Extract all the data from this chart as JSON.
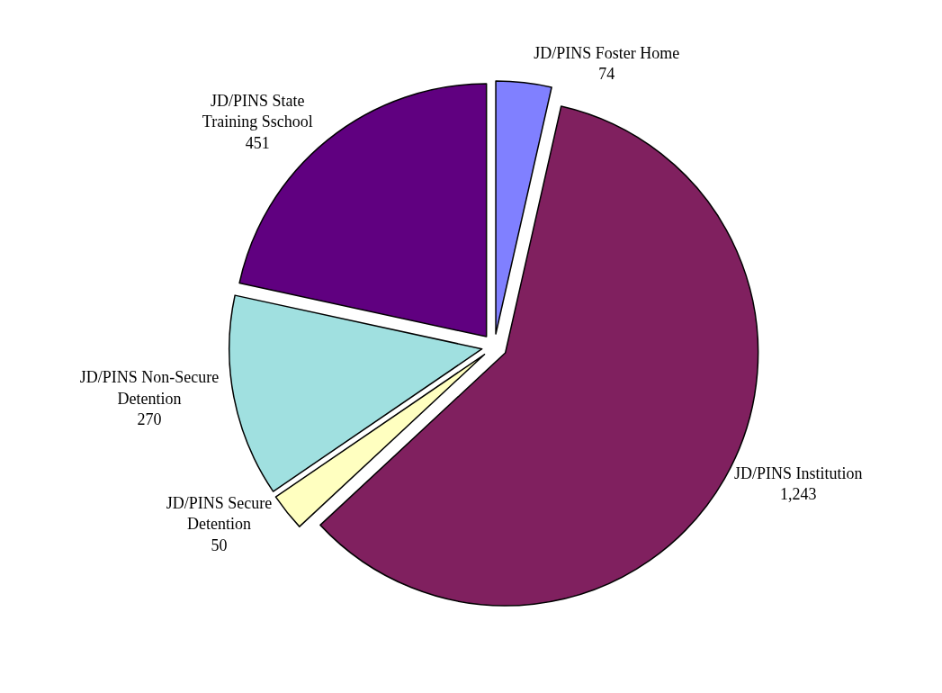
{
  "chart_data": {
    "type": "pie",
    "categories": [
      "JD/PINS Foster Home",
      "JD/PINS Institution",
      "JD/PINS Secure Detention",
      "JD/PINS Non-Secure Detention",
      "JD/PINS State Training Sschool"
    ],
    "values": [
      74,
      1243,
      50,
      270,
      451
    ],
    "colors": [
      "#8080ff",
      "#80205f",
      "#ffffc0",
      "#a0e0e0",
      "#600080"
    ],
    "value_labels": [
      "74",
      "1,243",
      "50",
      "270",
      "451"
    ],
    "legend": false
  }
}
